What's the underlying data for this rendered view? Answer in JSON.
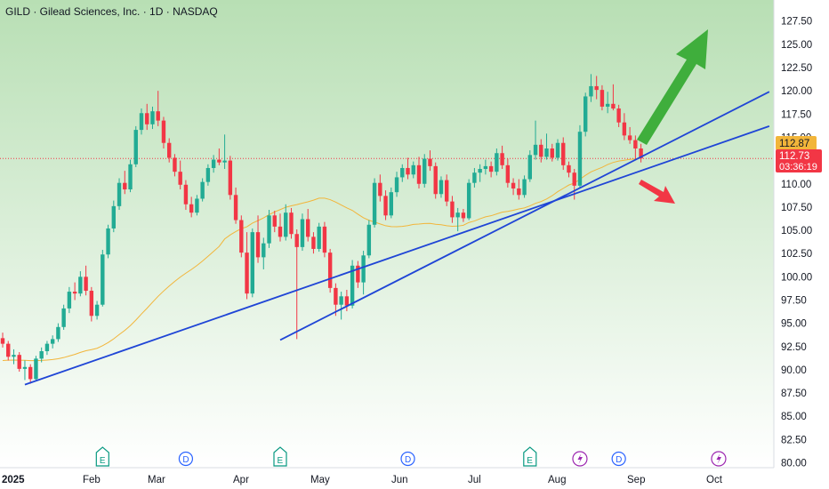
{
  "header": {
    "title": "GILD · Gilead Sciences, Inc. · 1D · NASDAQ"
  },
  "colors": {
    "up": "#22ab94",
    "down": "#f23645",
    "ma": "#f2b53a",
    "trendline": "#1f45d6",
    "arrow_up": "#3fae3c",
    "arrow_down": "#f23645",
    "bg_top": "#b8dfb4",
    "bg_bottom": "#ffffff",
    "dividend": "#2962ff",
    "earnings": "#089981",
    "split": "#9c27b0"
  },
  "price_labels": {
    "upper": {
      "value": "112.87",
      "color": "#f2b53a"
    },
    "last": {
      "value": "112.73",
      "countdown": "03:36:19",
      "color": "#f23645"
    }
  },
  "chart_data": {
    "type": "candlestick",
    "title": "GILD · Gilead Sciences, Inc. · 1D · NASDAQ",
    "y_axis": {
      "range": [
        80,
        128
      ],
      "ticks": [
        "127.50",
        "125.00",
        "122.50",
        "120.00",
        "117.50",
        "115.00",
        "112.50",
        "110.00",
        "107.50",
        "105.00",
        "102.50",
        "100.00",
        "97.50",
        "95.00",
        "92.50",
        "90.00",
        "87.50",
        "85.00",
        "82.50",
        "80.00"
      ]
    },
    "x_axis": {
      "labels": [
        {
          "text": "2025",
          "bold": true
        },
        {
          "text": "Feb"
        },
        {
          "text": "Mar"
        },
        {
          "text": "Apr"
        },
        {
          "text": "May"
        },
        {
          "text": "Jun"
        },
        {
          "text": "Jul"
        },
        {
          "text": "Aug"
        },
        {
          "text": "Sep"
        },
        {
          "text": "Oct"
        }
      ]
    },
    "last_price": 112.73,
    "moving_average": true,
    "candles": [
      {
        "o": 93.4,
        "h": 94.0,
        "l": 92.4,
        "c": 92.8
      },
      {
        "o": 92.8,
        "h": 93.1,
        "l": 91.0,
        "c": 91.4
      },
      {
        "o": 91.4,
        "h": 92.2,
        "l": 90.6,
        "c": 91.6
      },
      {
        "o": 91.6,
        "h": 91.9,
        "l": 89.8,
        "c": 90.1
      },
      {
        "o": 90.1,
        "h": 91.0,
        "l": 88.9,
        "c": 90.3
      },
      {
        "o": 90.3,
        "h": 90.6,
        "l": 88.5,
        "c": 89.0
      },
      {
        "o": 89.0,
        "h": 91.5,
        "l": 88.9,
        "c": 91.2
      },
      {
        "o": 91.2,
        "h": 92.4,
        "l": 90.8,
        "c": 92.0
      },
      {
        "o": 92.0,
        "h": 93.1,
        "l": 91.6,
        "c": 92.8
      },
      {
        "o": 92.8,
        "h": 93.7,
        "l": 92.3,
        "c": 93.3
      },
      {
        "o": 93.3,
        "h": 95.0,
        "l": 93.0,
        "c": 94.6
      },
      {
        "o": 94.6,
        "h": 97.0,
        "l": 94.3,
        "c": 96.6
      },
      {
        "o": 96.6,
        "h": 98.9,
        "l": 96.1,
        "c": 98.4
      },
      {
        "o": 98.4,
        "h": 99.4,
        "l": 97.5,
        "c": 98.2
      },
      {
        "o": 98.2,
        "h": 100.6,
        "l": 97.9,
        "c": 100.0
      },
      {
        "o": 100.0,
        "h": 101.2,
        "l": 98.0,
        "c": 98.5
      },
      {
        "o": 98.5,
        "h": 98.9,
        "l": 95.2,
        "c": 95.8
      },
      {
        "o": 95.8,
        "h": 97.4,
        "l": 95.4,
        "c": 97.0
      },
      {
        "o": 97.0,
        "h": 102.9,
        "l": 96.8,
        "c": 102.4
      },
      {
        "o": 102.4,
        "h": 105.6,
        "l": 102.0,
        "c": 105.2
      },
      {
        "o": 105.2,
        "h": 108.2,
        "l": 104.8,
        "c": 107.6
      },
      {
        "o": 107.6,
        "h": 110.6,
        "l": 107.2,
        "c": 110.1
      },
      {
        "o": 110.1,
        "h": 111.4,
        "l": 108.9,
        "c": 109.4
      },
      {
        "o": 109.4,
        "h": 112.6,
        "l": 109.1,
        "c": 112.1
      },
      {
        "o": 112.1,
        "h": 116.2,
        "l": 111.8,
        "c": 115.8
      },
      {
        "o": 115.8,
        "h": 118.1,
        "l": 115.3,
        "c": 117.6
      },
      {
        "o": 117.6,
        "h": 118.6,
        "l": 115.8,
        "c": 116.4
      },
      {
        "o": 116.4,
        "h": 118.3,
        "l": 115.9,
        "c": 117.8
      },
      {
        "o": 117.8,
        "h": 120.0,
        "l": 116.2,
        "c": 116.8
      },
      {
        "o": 116.8,
        "h": 117.2,
        "l": 113.8,
        "c": 114.4
      },
      {
        "o": 114.4,
        "h": 114.9,
        "l": 112.3,
        "c": 112.8
      },
      {
        "o": 112.8,
        "h": 113.2,
        "l": 110.8,
        "c": 111.3
      },
      {
        "o": 111.3,
        "h": 112.5,
        "l": 109.4,
        "c": 109.9
      },
      {
        "o": 109.9,
        "h": 110.4,
        "l": 107.2,
        "c": 107.8
      },
      {
        "o": 107.8,
        "h": 108.6,
        "l": 106.4,
        "c": 106.9
      },
      {
        "o": 106.9,
        "h": 108.8,
        "l": 106.6,
        "c": 108.4
      },
      {
        "o": 108.4,
        "h": 110.6,
        "l": 108.1,
        "c": 110.2
      },
      {
        "o": 110.2,
        "h": 112.1,
        "l": 109.8,
        "c": 111.7
      },
      {
        "o": 111.7,
        "h": 113.1,
        "l": 111.2,
        "c": 112.6
      },
      {
        "o": 112.6,
        "h": 113.8,
        "l": 112.0,
        "c": 112.3
      },
      {
        "o": 112.3,
        "h": 115.3,
        "l": 111.6,
        "c": 112.5
      },
      {
        "o": 112.5,
        "h": 113.0,
        "l": 108.3,
        "c": 108.8
      },
      {
        "o": 108.8,
        "h": 109.6,
        "l": 105.7,
        "c": 106.1
      },
      {
        "o": 106.1,
        "h": 106.6,
        "l": 102.1,
        "c": 102.6
      },
      {
        "o": 102.6,
        "h": 104.8,
        "l": 97.6,
        "c": 98.2
      },
      {
        "o": 98.2,
        "h": 105.2,
        "l": 97.8,
        "c": 104.8
      },
      {
        "o": 104.8,
        "h": 106.6,
        "l": 101.5,
        "c": 102.1
      },
      {
        "o": 102.1,
        "h": 104.2,
        "l": 100.8,
        "c": 103.6
      },
      {
        "o": 103.6,
        "h": 107.2,
        "l": 103.1,
        "c": 106.6
      },
      {
        "o": 106.6,
        "h": 107.1,
        "l": 104.8,
        "c": 105.4
      },
      {
        "o": 105.4,
        "h": 106.8,
        "l": 103.8,
        "c": 104.3
      },
      {
        "o": 104.3,
        "h": 107.8,
        "l": 103.9,
        "c": 106.9
      },
      {
        "o": 106.9,
        "h": 107.4,
        "l": 104.1,
        "c": 104.6
      },
      {
        "o": 104.6,
        "h": 105.1,
        "l": 93.3,
        "c": 103.2
      },
      {
        "o": 103.2,
        "h": 106.8,
        "l": 102.8,
        "c": 106.2
      },
      {
        "o": 106.2,
        "h": 107.3,
        "l": 103.8,
        "c": 104.3
      },
      {
        "o": 104.3,
        "h": 104.8,
        "l": 102.5,
        "c": 103.0
      },
      {
        "o": 103.0,
        "h": 105.8,
        "l": 102.7,
        "c": 105.4
      },
      {
        "o": 105.4,
        "h": 105.9,
        "l": 102.1,
        "c": 102.6
      },
      {
        "o": 102.6,
        "h": 103.0,
        "l": 98.3,
        "c": 98.8
      },
      {
        "o": 98.8,
        "h": 99.3,
        "l": 95.8,
        "c": 97.0
      },
      {
        "o": 97.0,
        "h": 98.4,
        "l": 95.4,
        "c": 97.9
      },
      {
        "o": 97.9,
        "h": 98.6,
        "l": 96.3,
        "c": 96.9
      },
      {
        "o": 96.9,
        "h": 101.8,
        "l": 96.6,
        "c": 101.2
      },
      {
        "o": 101.2,
        "h": 101.7,
        "l": 98.8,
        "c": 99.4
      },
      {
        "o": 99.4,
        "h": 102.8,
        "l": 98.1,
        "c": 102.3
      },
      {
        "o": 102.3,
        "h": 106.1,
        "l": 102.0,
        "c": 105.6
      },
      {
        "o": 105.6,
        "h": 110.6,
        "l": 105.3,
        "c": 110.1
      },
      {
        "o": 110.1,
        "h": 111.0,
        "l": 108.1,
        "c": 108.7
      },
      {
        "o": 108.7,
        "h": 109.3,
        "l": 106.1,
        "c": 106.6
      },
      {
        "o": 106.6,
        "h": 109.6,
        "l": 106.3,
        "c": 109.1
      },
      {
        "o": 109.1,
        "h": 111.3,
        "l": 108.6,
        "c": 110.7
      },
      {
        "o": 110.7,
        "h": 112.1,
        "l": 110.2,
        "c": 111.7
      },
      {
        "o": 111.7,
        "h": 112.8,
        "l": 110.5,
        "c": 111.0
      },
      {
        "o": 111.0,
        "h": 112.4,
        "l": 110.6,
        "c": 112.0
      },
      {
        "o": 112.0,
        "h": 112.9,
        "l": 109.5,
        "c": 110.0
      },
      {
        "o": 110.0,
        "h": 113.2,
        "l": 109.6,
        "c": 112.7
      },
      {
        "o": 112.7,
        "h": 113.6,
        "l": 111.4,
        "c": 111.9
      },
      {
        "o": 111.9,
        "h": 112.3,
        "l": 108.4,
        "c": 108.9
      },
      {
        "o": 108.9,
        "h": 110.8,
        "l": 108.5,
        "c": 110.4
      },
      {
        "o": 110.4,
        "h": 111.0,
        "l": 107.6,
        "c": 108.1
      },
      {
        "o": 108.1,
        "h": 108.7,
        "l": 105.8,
        "c": 106.4
      },
      {
        "o": 106.4,
        "h": 107.4,
        "l": 104.9,
        "c": 106.9
      },
      {
        "o": 106.9,
        "h": 107.3,
        "l": 105.9,
        "c": 106.3
      },
      {
        "o": 106.3,
        "h": 110.5,
        "l": 106.1,
        "c": 110.1
      },
      {
        "o": 110.1,
        "h": 111.7,
        "l": 109.6,
        "c": 111.2
      },
      {
        "o": 111.2,
        "h": 112.1,
        "l": 110.2,
        "c": 111.6
      },
      {
        "o": 111.6,
        "h": 112.6,
        "l": 111.0,
        "c": 111.9
      },
      {
        "o": 111.9,
        "h": 112.4,
        "l": 110.7,
        "c": 111.3
      },
      {
        "o": 111.3,
        "h": 113.8,
        "l": 110.9,
        "c": 113.3
      },
      {
        "o": 113.3,
        "h": 114.1,
        "l": 111.6,
        "c": 112.0
      },
      {
        "o": 112.0,
        "h": 112.7,
        "l": 109.6,
        "c": 110.1
      },
      {
        "o": 110.1,
        "h": 110.6,
        "l": 108.8,
        "c": 109.5
      },
      {
        "o": 109.5,
        "h": 110.5,
        "l": 108.3,
        "c": 108.8
      },
      {
        "o": 108.8,
        "h": 110.9,
        "l": 108.5,
        "c": 110.5
      },
      {
        "o": 110.5,
        "h": 113.6,
        "l": 110.2,
        "c": 113.1
      },
      {
        "o": 113.1,
        "h": 116.8,
        "l": 112.6,
        "c": 114.2
      },
      {
        "o": 114.2,
        "h": 114.8,
        "l": 112.3,
        "c": 112.9
      },
      {
        "o": 112.9,
        "h": 115.4,
        "l": 112.6,
        "c": 113.8
      },
      {
        "o": 113.8,
        "h": 114.3,
        "l": 112.4,
        "c": 112.8
      },
      {
        "o": 112.8,
        "h": 114.8,
        "l": 112.5,
        "c": 114.4
      },
      {
        "o": 114.4,
        "h": 115.0,
        "l": 111.5,
        "c": 112.0
      },
      {
        "o": 112.0,
        "h": 112.4,
        "l": 110.7,
        "c": 111.2
      },
      {
        "o": 111.2,
        "h": 111.6,
        "l": 108.3,
        "c": 109.8
      },
      {
        "o": 109.8,
        "h": 116.3,
        "l": 109.5,
        "c": 115.6
      },
      {
        "o": 115.6,
        "h": 119.8,
        "l": 115.1,
        "c": 119.4
      },
      {
        "o": 119.4,
        "h": 121.8,
        "l": 118.8,
        "c": 120.5
      },
      {
        "o": 120.5,
        "h": 121.6,
        "l": 119.1,
        "c": 120.1
      },
      {
        "o": 120.1,
        "h": 120.6,
        "l": 117.9,
        "c": 118.3
      },
      {
        "o": 118.3,
        "h": 119.9,
        "l": 117.6,
        "c": 118.6
      },
      {
        "o": 118.6,
        "h": 120.7,
        "l": 117.9,
        "c": 118.1
      },
      {
        "o": 118.1,
        "h": 118.5,
        "l": 116.1,
        "c": 116.6
      },
      {
        "o": 116.6,
        "h": 117.6,
        "l": 114.7,
        "c": 115.2
      },
      {
        "o": 115.2,
        "h": 116.1,
        "l": 114.3,
        "c": 114.7
      },
      {
        "o": 114.7,
        "h": 115.2,
        "l": 112.6,
        "c": 113.8
      },
      {
        "o": 113.8,
        "h": 114.3,
        "l": 112.3,
        "c": 112.73
      }
    ],
    "trendlines": [
      {
        "from_index": 4,
        "from_price": 88.4,
        "to_index": 112,
        "to_price": 116.2
      },
      {
        "from_index": 50,
        "from_price": 93.2,
        "to_index": 112,
        "to_price": 119.9
      }
    ],
    "annotations": {
      "arrow_up": "target higher",
      "arrow_down": "target lower"
    },
    "events": [
      {
        "type": "E",
        "index": 18
      },
      {
        "type": "D",
        "index": 33
      },
      {
        "type": "E",
        "index": 50
      },
      {
        "type": "D",
        "index": 73
      },
      {
        "type": "E",
        "index": 95
      },
      {
        "type": "split",
        "index": 104
      },
      {
        "type": "D",
        "index": 111
      },
      {
        "type": "split",
        "index": 129
      }
    ]
  }
}
